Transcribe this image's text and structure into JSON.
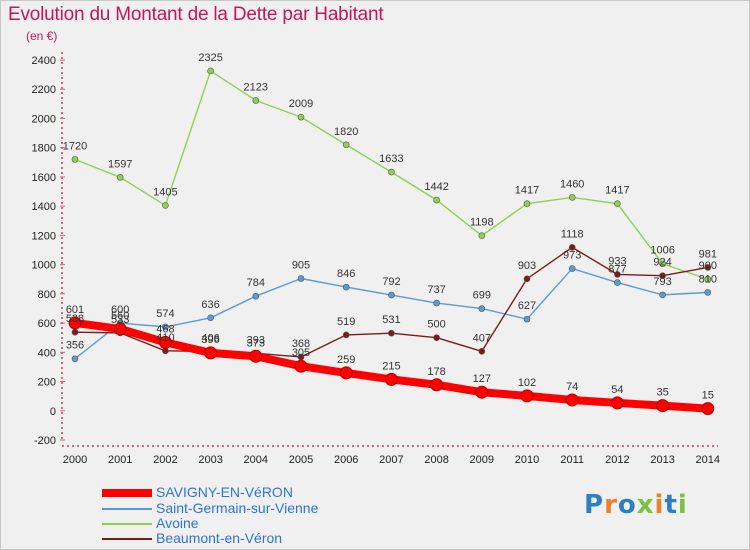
{
  "title": "Evolution du Montant de la Dette par Habitant",
  "subtitle": "(en €)",
  "logo": {
    "text": "Proxiti",
    "colors": [
      "#2e7fc2",
      "#e8832a",
      "#2e7fc2",
      "#7cc242",
      "#e8832a",
      "#2e7fc2",
      "#7cc242"
    ]
  },
  "chart_data": {
    "type": "line",
    "title": "Evolution du Montant de la Dette par Habitant",
    "ylabel": "(en €)",
    "xlabel": "",
    "ylim": [
      -200,
      2400
    ],
    "yticks": [
      -200,
      0,
      200,
      400,
      600,
      800,
      1000,
      1200,
      1400,
      1600,
      1800,
      2000,
      2200,
      2400
    ],
    "x": [
      "2000",
      "2001",
      "2002",
      "2003",
      "2004",
      "2005",
      "2006",
      "2007",
      "2008",
      "2009",
      "2010",
      "2011",
      "2012",
      "2013",
      "2014"
    ],
    "grid": false,
    "legend_position": "bottom-left",
    "series": [
      {
        "name": "SAVIGNY-EN-VéRON",
        "color": "#ff0000",
        "emphasis": true,
        "values": [
          601,
          560,
          468,
          396,
          373,
          305,
          259,
          215,
          178,
          127,
          102,
          74,
          54,
          35,
          15
        ]
      },
      {
        "name": "Saint-Germain-sur-Vienne",
        "color": "#5b9bd5",
        "values": [
          356,
          600,
          574,
          636,
          784,
          905,
          846,
          792,
          737,
          699,
          627,
          973,
          877,
          793,
          810
        ]
      },
      {
        "name": "Avoine",
        "color": "#8fd14f",
        "values": [
          1720,
          1597,
          1405,
          2325,
          2123,
          2009,
          1820,
          1633,
          1442,
          1198,
          1417,
          1460,
          1417,
          1006,
          900
        ]
      },
      {
        "name": "Beaumont-en-Véron",
        "color": "#7b1c1c",
        "values": [
          538,
          533,
          410,
          406,
          393,
          368,
          519,
          531,
          500,
          407,
          903,
          1118,
          933,
          924,
          981
        ]
      }
    ]
  }
}
